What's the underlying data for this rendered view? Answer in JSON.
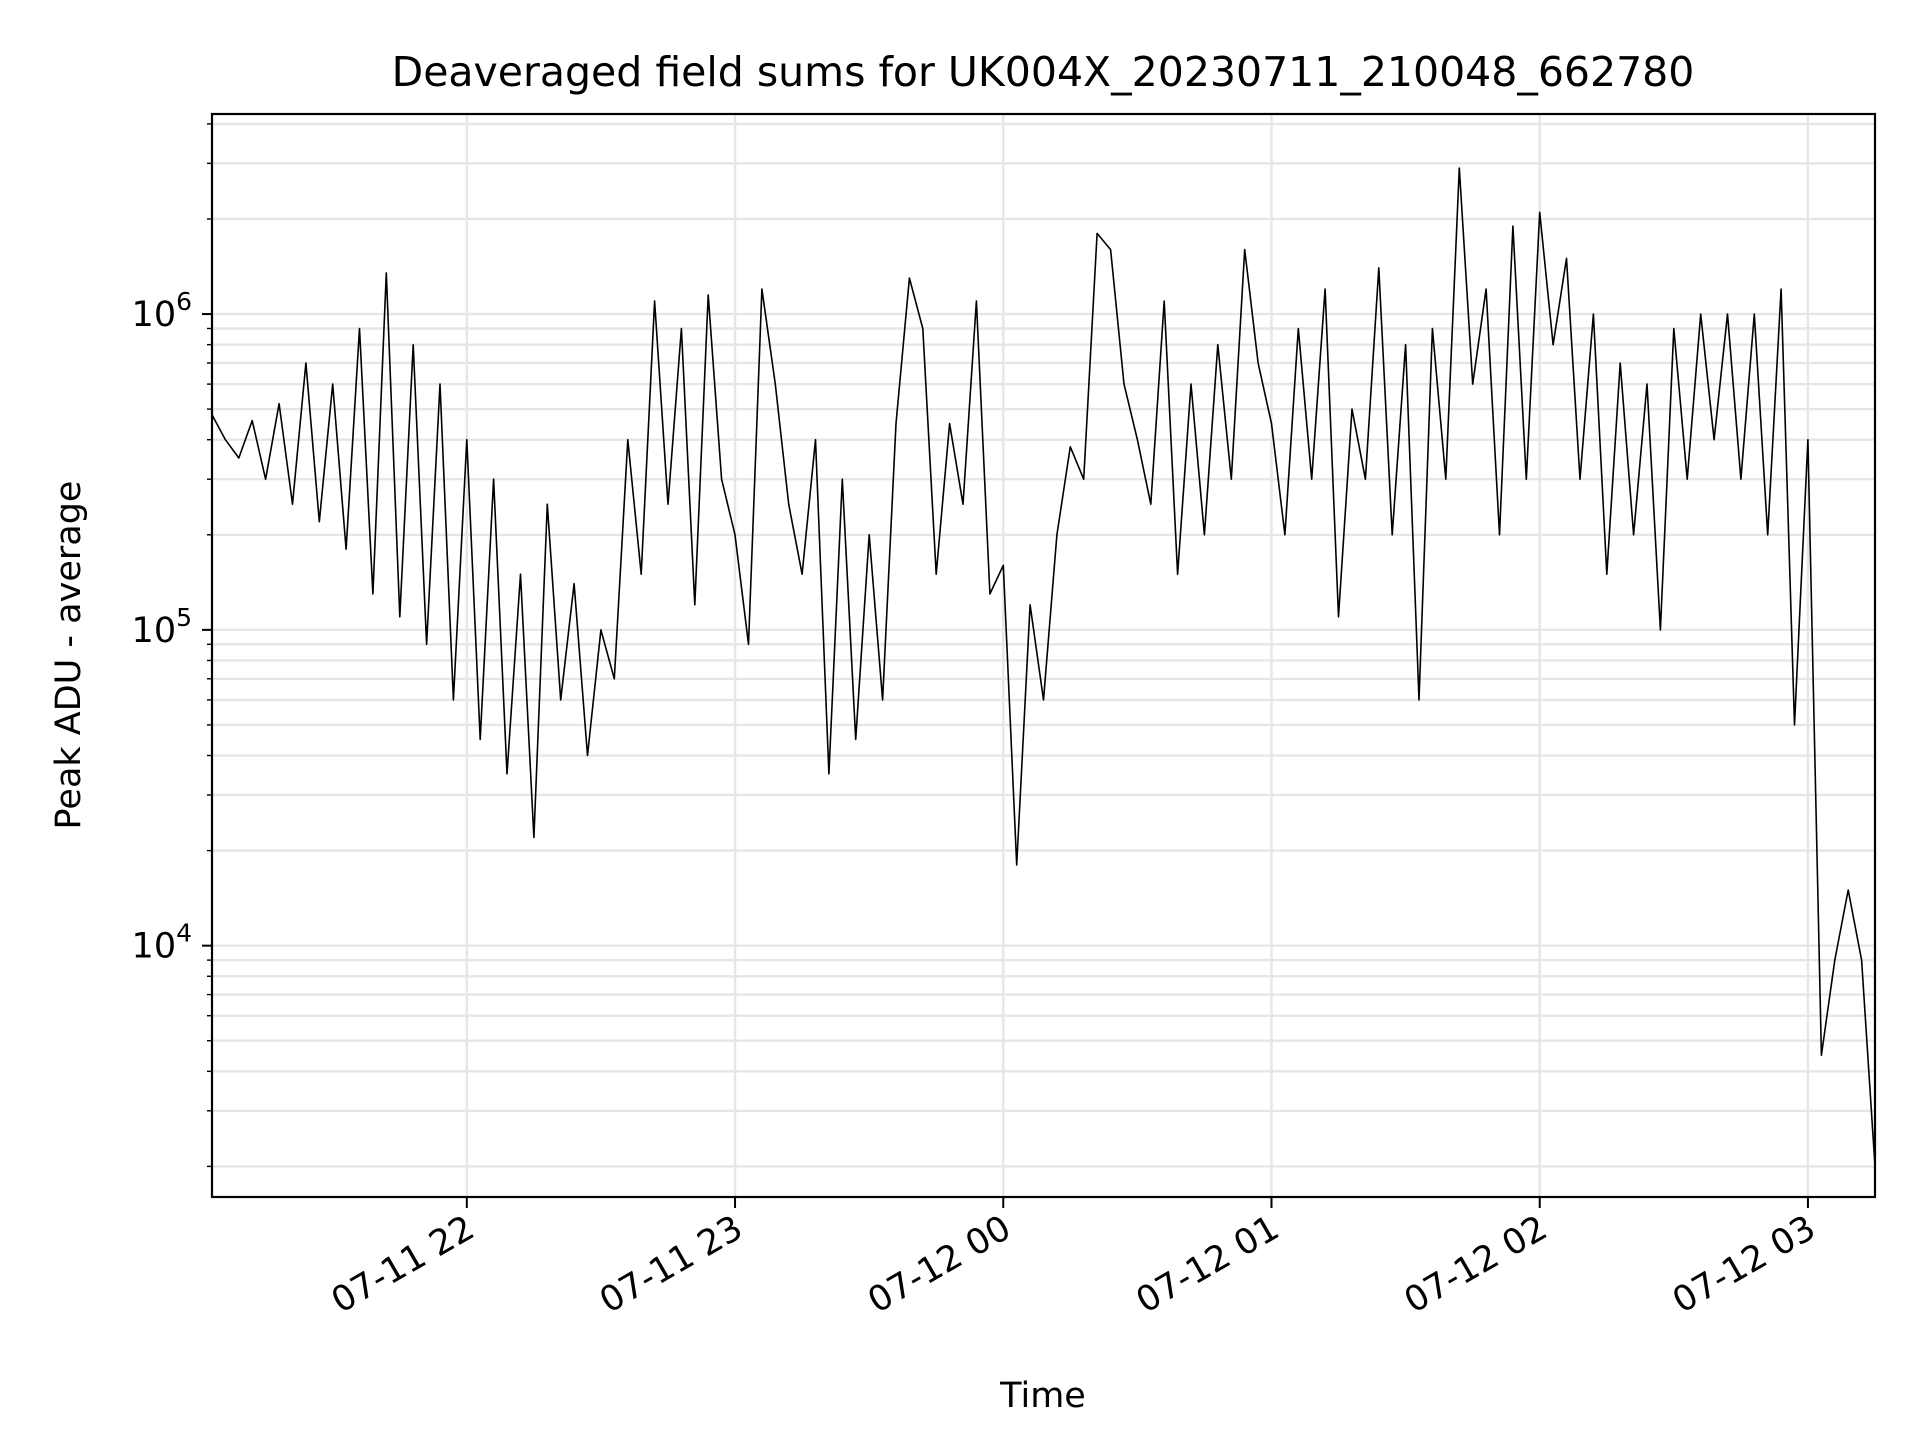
{
  "chart_data": {
    "type": "line",
    "title": "Deaveraged field sums for UK004X_20230711_210048_662780",
    "xlabel": "Time",
    "ylabel": "Peak ADU - average",
    "yscale": "log",
    "grid": true,
    "legend": "none",
    "xlim": [
      "2023-07-11 21:03",
      "2023-07-12 03:15"
    ],
    "ylim": [
      1600,
      4300000
    ],
    "x_ticks": [
      {
        "value": "2023-07-11 22:00",
        "label": "07-11 22"
      },
      {
        "value": "2023-07-11 23:00",
        "label": "07-11 23"
      },
      {
        "value": "2023-07-12 00:00",
        "label": "07-12 00"
      },
      {
        "value": "2023-07-12 01:00",
        "label": "07-12 01"
      },
      {
        "value": "2023-07-12 02:00",
        "label": "07-12 02"
      },
      {
        "value": "2023-07-12 03:00",
        "label": "07-12 03"
      }
    ],
    "y_ticks": [
      {
        "value": 10000,
        "base": "10",
        "exp": "4"
      },
      {
        "value": 100000,
        "base": "10",
        "exp": "5"
      },
      {
        "value": 1000000,
        "base": "10",
        "exp": "6"
      }
    ],
    "series": [
      {
        "color": "#000000",
        "points": [
          [
            "2023-07-11 21:03",
            480000
          ],
          [
            "2023-07-11 21:06",
            400000
          ],
          [
            "2023-07-11 21:09",
            350000
          ],
          [
            "2023-07-11 21:12",
            460000
          ],
          [
            "2023-07-11 21:15",
            300000
          ],
          [
            "2023-07-11 21:18",
            520000
          ],
          [
            "2023-07-11 21:21",
            250000
          ],
          [
            "2023-07-11 21:24",
            700000
          ],
          [
            "2023-07-11 21:27",
            220000
          ],
          [
            "2023-07-11 21:30",
            600000
          ],
          [
            "2023-07-11 21:33",
            180000
          ],
          [
            "2023-07-11 21:36",
            900000
          ],
          [
            "2023-07-11 21:39",
            130000
          ],
          [
            "2023-07-11 21:42",
            1350000
          ],
          [
            "2023-07-11 21:45",
            110000
          ],
          [
            "2023-07-11 21:48",
            800000
          ],
          [
            "2023-07-11 21:51",
            90000
          ],
          [
            "2023-07-11 21:54",
            600000
          ],
          [
            "2023-07-11 21:57",
            60000
          ],
          [
            "2023-07-11 22:00",
            400000
          ],
          [
            "2023-07-11 22:03",
            45000
          ],
          [
            "2023-07-11 22:06",
            300000
          ],
          [
            "2023-07-11 22:09",
            35000
          ],
          [
            "2023-07-11 22:12",
            150000
          ],
          [
            "2023-07-11 22:15",
            22000
          ],
          [
            "2023-07-11 22:18",
            250000
          ],
          [
            "2023-07-11 22:21",
            60000
          ],
          [
            "2023-07-11 22:24",
            140000
          ],
          [
            "2023-07-11 22:27",
            40000
          ],
          [
            "2023-07-11 22:30",
            100000
          ],
          [
            "2023-07-11 22:33",
            70000
          ],
          [
            "2023-07-11 22:36",
            400000
          ],
          [
            "2023-07-11 22:39",
            150000
          ],
          [
            "2023-07-11 22:42",
            1100000
          ],
          [
            "2023-07-11 22:45",
            250000
          ],
          [
            "2023-07-11 22:48",
            900000
          ],
          [
            "2023-07-11 22:51",
            120000
          ],
          [
            "2023-07-11 22:54",
            1150000
          ],
          [
            "2023-07-11 22:57",
            300000
          ],
          [
            "2023-07-11 23:00",
            200000
          ],
          [
            "2023-07-11 23:03",
            90000
          ],
          [
            "2023-07-11 23:06",
            1200000
          ],
          [
            "2023-07-11 23:09",
            600000
          ],
          [
            "2023-07-11 23:12",
            250000
          ],
          [
            "2023-07-11 23:15",
            150000
          ],
          [
            "2023-07-11 23:18",
            400000
          ],
          [
            "2023-07-11 23:21",
            35000
          ],
          [
            "2023-07-11 23:24",
            300000
          ],
          [
            "2023-07-11 23:27",
            45000
          ],
          [
            "2023-07-11 23:30",
            200000
          ],
          [
            "2023-07-11 23:33",
            60000
          ],
          [
            "2023-07-11 23:36",
            450000
          ],
          [
            "2023-07-11 23:39",
            1300000
          ],
          [
            "2023-07-11 23:42",
            900000
          ],
          [
            "2023-07-11 23:45",
            150000
          ],
          [
            "2023-07-11 23:48",
            450000
          ],
          [
            "2023-07-11 23:51",
            250000
          ],
          [
            "2023-07-11 23:54",
            1100000
          ],
          [
            "2023-07-11 23:57",
            130000
          ],
          [
            "2023-07-12 00:00",
            160000
          ],
          [
            "2023-07-12 00:03",
            18000
          ],
          [
            "2023-07-12 00:06",
            120000
          ],
          [
            "2023-07-12 00:09",
            60000
          ],
          [
            "2023-07-12 00:12",
            200000
          ],
          [
            "2023-07-12 00:15",
            380000
          ],
          [
            "2023-07-12 00:18",
            300000
          ],
          [
            "2023-07-12 00:21",
            1800000
          ],
          [
            "2023-07-12 00:24",
            1600000
          ],
          [
            "2023-07-12 00:27",
            600000
          ],
          [
            "2023-07-12 00:30",
            400000
          ],
          [
            "2023-07-12 00:33",
            250000
          ],
          [
            "2023-07-12 00:36",
            1100000
          ],
          [
            "2023-07-12 00:39",
            150000
          ],
          [
            "2023-07-12 00:42",
            600000
          ],
          [
            "2023-07-12 00:45",
            200000
          ],
          [
            "2023-07-12 00:48",
            800000
          ],
          [
            "2023-07-12 00:51",
            300000
          ],
          [
            "2023-07-12 00:54",
            1600000
          ],
          [
            "2023-07-12 00:57",
            700000
          ],
          [
            "2023-07-12 01:00",
            450000
          ],
          [
            "2023-07-12 01:03",
            200000
          ],
          [
            "2023-07-12 01:06",
            900000
          ],
          [
            "2023-07-12 01:09",
            300000
          ],
          [
            "2023-07-12 01:12",
            1200000
          ],
          [
            "2023-07-12 01:15",
            110000
          ],
          [
            "2023-07-12 01:18",
            500000
          ],
          [
            "2023-07-12 01:21",
            300000
          ],
          [
            "2023-07-12 01:24",
            1400000
          ],
          [
            "2023-07-12 01:27",
            200000
          ],
          [
            "2023-07-12 01:30",
            800000
          ],
          [
            "2023-07-12 01:33",
            60000
          ],
          [
            "2023-07-12 01:36",
            900000
          ],
          [
            "2023-07-12 01:39",
            300000
          ],
          [
            "2023-07-12 01:42",
            2900000
          ],
          [
            "2023-07-12 01:45",
            600000
          ],
          [
            "2023-07-12 01:48",
            1200000
          ],
          [
            "2023-07-12 01:51",
            200000
          ],
          [
            "2023-07-12 01:54",
            1900000
          ],
          [
            "2023-07-12 01:57",
            300000
          ],
          [
            "2023-07-12 02:00",
            2100000
          ],
          [
            "2023-07-12 02:03",
            800000
          ],
          [
            "2023-07-12 02:06",
            1500000
          ],
          [
            "2023-07-12 02:09",
            300000
          ],
          [
            "2023-07-12 02:12",
            1000000
          ],
          [
            "2023-07-12 02:15",
            150000
          ],
          [
            "2023-07-12 02:18",
            700000
          ],
          [
            "2023-07-12 02:21",
            200000
          ],
          [
            "2023-07-12 02:24",
            600000
          ],
          [
            "2023-07-12 02:27",
            100000
          ],
          [
            "2023-07-12 02:30",
            900000
          ],
          [
            "2023-07-12 02:33",
            300000
          ],
          [
            "2023-07-12 02:36",
            1000000
          ],
          [
            "2023-07-12 02:39",
            400000
          ],
          [
            "2023-07-12 02:42",
            1000000
          ],
          [
            "2023-07-12 02:45",
            300000
          ],
          [
            "2023-07-12 02:48",
            1000000
          ],
          [
            "2023-07-12 02:51",
            200000
          ],
          [
            "2023-07-12 02:54",
            1200000
          ],
          [
            "2023-07-12 02:57",
            50000
          ],
          [
            "2023-07-12 03:00",
            400000
          ],
          [
            "2023-07-12 03:03",
            4500
          ],
          [
            "2023-07-12 03:06",
            9000
          ],
          [
            "2023-07-12 03:09",
            15000
          ],
          [
            "2023-07-12 03:12",
            9000
          ],
          [
            "2023-07-12 03:15",
            2000
          ]
        ]
      }
    ]
  }
}
